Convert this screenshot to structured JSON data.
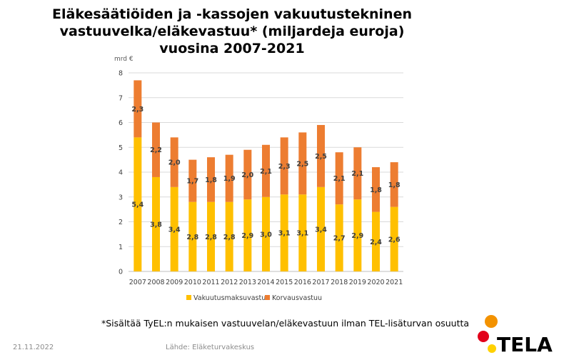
{
  "title_lines": [
    "Eläkesäätiöiden ja -kassojen vakuutustekninen",
    "vastuuvelka/eläkevastuu* (miljardeja euroja)",
    "vuosina 2007-2021"
  ],
  "chart_data": {
    "type": "bar",
    "stacked": true,
    "categories": [
      "2007",
      "2008",
      "2009",
      "2010",
      "2011",
      "2012",
      "2013",
      "2014",
      "2015",
      "2016",
      "2017",
      "2018",
      "2019",
      "2020",
      "2021"
    ],
    "series": [
      {
        "name": "Vakuutusmaksuvastuu",
        "color": "#FFC000",
        "values": [
          5.4,
          3.8,
          3.4,
          2.8,
          2.8,
          2.8,
          2.9,
          3.0,
          3.1,
          3.1,
          3.4,
          2.7,
          2.9,
          2.4,
          2.6
        ],
        "labels": [
          "5,4",
          "3,8",
          "3,4",
          "2,8",
          "2,8",
          "2,8",
          "2,9",
          "3,0",
          "3,1",
          "3,1",
          "3,4",
          "2,7",
          "2,9",
          "2,4",
          "2,6"
        ]
      },
      {
        "name": "Korvausvastuu",
        "color": "#ED7D31",
        "values": [
          2.3,
          2.2,
          2.0,
          1.7,
          1.8,
          1.9,
          2.0,
          2.1,
          2.3,
          2.5,
          2.5,
          2.1,
          2.1,
          1.8,
          1.8
        ],
        "labels": [
          "2,3",
          "2,2",
          "2,0",
          "1,7",
          "1,8",
          "1,9",
          "2,0",
          "2,1",
          "2,3",
          "2,5",
          "2,5",
          "2,1",
          "2,1",
          "1,8",
          "1,8"
        ]
      }
    ],
    "ylabel": "mrd €",
    "ylim": [
      0,
      8
    ],
    "yticks": [
      "0",
      "1",
      "2",
      "3",
      "4",
      "5",
      "6",
      "7",
      "8"
    ],
    "grid": true,
    "legend_position": "bottom"
  },
  "footnote": "*Sisältää TyEL:n mukaisen vastuuvelan/eläkevastuun ilman TEL-lisäturvan osuutta",
  "date": "21.11.2022",
  "source": "Lähde: Eläketurvakeskus",
  "logo": {
    "text": "TELA",
    "colors": [
      "#F39200",
      "#E2001A",
      "#FFD100"
    ]
  }
}
